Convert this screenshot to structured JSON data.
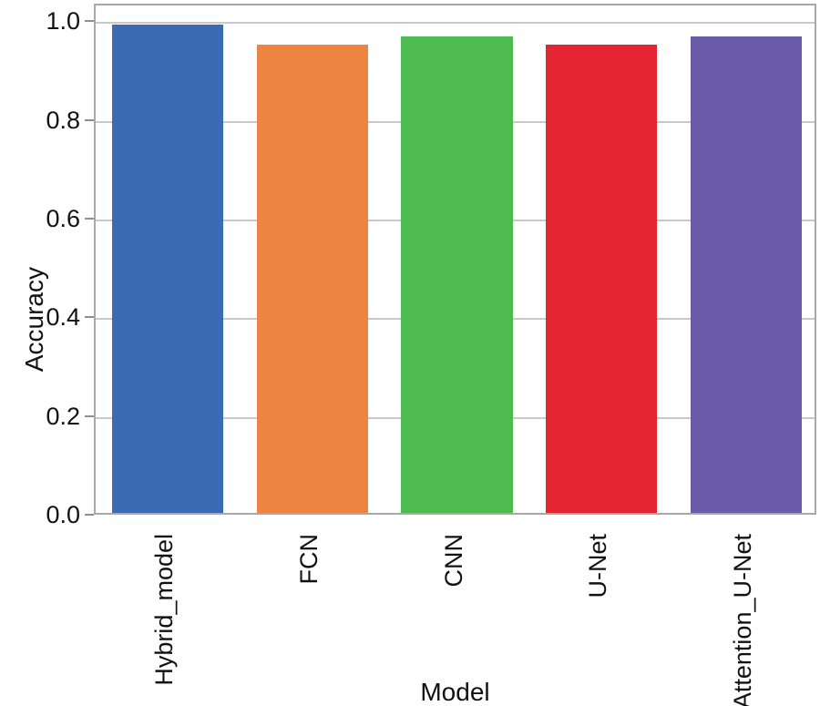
{
  "chart_data": {
    "type": "bar",
    "title": "",
    "categories": [
      "Hybrid_model",
      "FCN",
      "CNN",
      "U-Net",
      "Attention_U-Net"
    ],
    "values": [
      0.99,
      0.95,
      0.966,
      0.95,
      0.966
    ],
    "series": [
      {
        "name": "Accuracy",
        "values": [
          0.99,
          0.95,
          0.966,
          0.95,
          0.966
        ]
      }
    ],
    "bar_colors": [
      "#3d6bb3",
      "#ee8442",
      "#4dbb4f",
      "#e32431",
      "#6a5aa8"
    ],
    "xlabel": "Model",
    "ylabel": "Accuracy",
    "yticks": [
      0.0,
      0.2,
      0.4,
      0.6,
      0.8,
      1.0
    ],
    "ytick_labels": [
      "0.0",
      "0.2",
      "0.4",
      "0.6",
      "0.8",
      "1.0"
    ],
    "ylim": [
      0,
      1.036
    ],
    "grid": "horizontal",
    "legend_position": "none",
    "bar_width_fraction": 0.77
  },
  "style": {
    "frame_color": "#a8a8a8",
    "gridline_color": "#c9c9c9",
    "tick_color": "#8f8f8f",
    "text_color": "#111111",
    "background_color": "#ffffff"
  }
}
